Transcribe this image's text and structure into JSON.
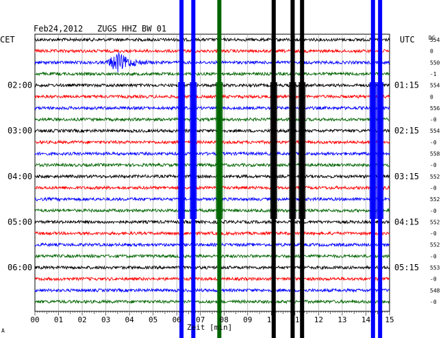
{
  "header": {
    "date": "Feb24,2012",
    "station": "ZUGS HHZ BW 01",
    "left_tz": "CET",
    "right_tz": "UTC",
    "dc_label": "DC"
  },
  "x_axis": {
    "label": "Zeit [min]",
    "ticks": [
      "00",
      "01",
      "02",
      "03",
      "04",
      "05",
      "06",
      "07",
      "08",
      "09",
      "10",
      "11",
      "12",
      "13",
      "14",
      "15"
    ]
  },
  "left_time_labels": [
    {
      "row": 4,
      "text": "02:00"
    },
    {
      "row": 8,
      "text": "03:00"
    },
    {
      "row": 12,
      "text": "04:00"
    },
    {
      "row": 16,
      "text": "05:00"
    },
    {
      "row": 20,
      "text": "06:00"
    }
  ],
  "right_time_labels": [
    {
      "row": 4,
      "text": "01:15"
    },
    {
      "row": 8,
      "text": "02:15"
    },
    {
      "row": 12,
      "text": "03:15"
    },
    {
      "row": 16,
      "text": "04:15"
    },
    {
      "row": 20,
      "text": "05:15"
    }
  ],
  "dc_values": [
    "554",
    "0",
    "550",
    "-1",
    "554",
    "0",
    "556",
    "-0",
    "554",
    "-0",
    "558",
    "-0",
    "552",
    "-0",
    "552",
    "-0",
    "552",
    "-0",
    "552",
    "-0",
    "553",
    "-0",
    "548",
    "-0"
  ],
  "footer_mark": "A",
  "chart_data": {
    "type": "line",
    "title": "Feb24,2012   ZUGS HHZ BW 01",
    "xlabel": "Zeit [min]",
    "xlim": [
      0,
      15
    ],
    "rows": 24,
    "row_minutes": 15,
    "row_colors": [
      "#000000",
      "#ff0000",
      "#0000ff",
      "#006400"
    ],
    "event": {
      "row": 2,
      "start_min": 3.0,
      "end_min": 5.0,
      "peak_min": 3.5
    },
    "vertical_bursts": [
      {
        "min": 6.2,
        "color": "#0000ff"
      },
      {
        "min": 6.7,
        "color": "#0000ff"
      },
      {
        "min": 7.8,
        "color": "#006400"
      },
      {
        "min": 10.1,
        "color": "#000000"
      },
      {
        "min": 10.9,
        "color": "#000000"
      },
      {
        "min": 11.3,
        "color": "#000000"
      },
      {
        "min": 14.3,
        "color": "#0000ff"
      },
      {
        "min": 14.6,
        "color": "#0000ff"
      }
    ]
  }
}
